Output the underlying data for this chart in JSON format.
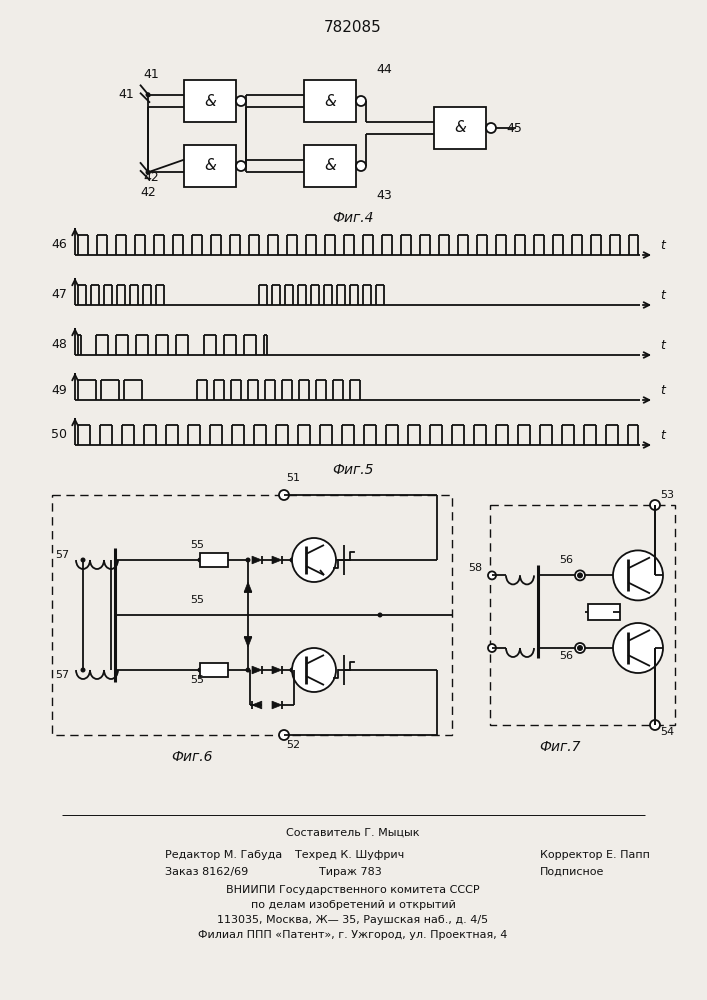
{
  "patent_number": "782085",
  "fig4_label": "Фиг.4",
  "fig5_label": "Фиг.5",
  "fig6_label": "Фиг.6",
  "fig7_label": "Фиг.7",
  "bg_color": "#f0ede8",
  "line_color": "#111111",
  "footer_lines": [
    "Составитель Г. Мыцык",
    "Редактор М. Габуда",
    "Техред К. Шуфрич",
    "Корректор Е. Папп",
    "Заказ 8162/69",
    "Тираж 783",
    "Подписное",
    "ВНИИПИ Государственного комитета СССР",
    "по делам изобретений и открытий",
    "113035, Москва, Ж— 35, Раушская наб., д. 4/5",
    "Филиал ППП «Патент», г. Ужгород, ул. Проектная, 4"
  ]
}
